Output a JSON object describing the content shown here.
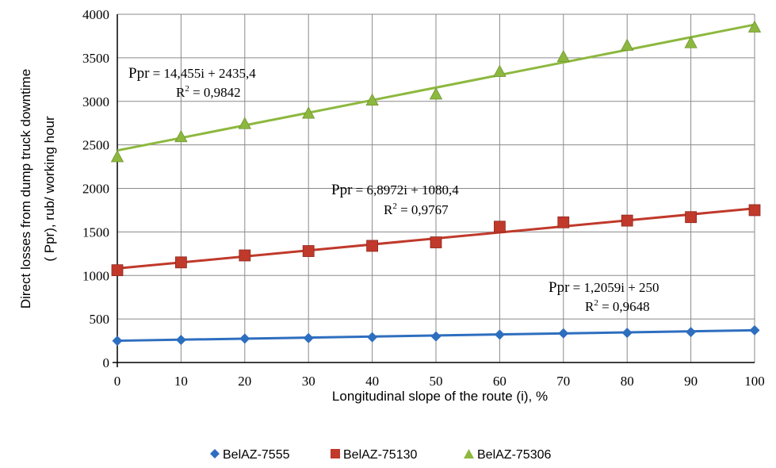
{
  "chart_data": {
    "type": "scatter",
    "xlabel": "Longitudinal slope of the route (i), %",
    "ylabel_line1": "Direct losses from dump truck downtime",
    "ylabel_line2": "( Ppr), rub/ working hour",
    "xlim": [
      0,
      100
    ],
    "ylim": [
      0,
      4000
    ],
    "xticks": [
      0,
      10,
      20,
      30,
      40,
      50,
      60,
      70,
      80,
      90,
      100
    ],
    "yticks": [
      0,
      500,
      1000,
      1500,
      2000,
      2500,
      3000,
      3500,
      4000
    ],
    "grid": "vertical and horizontal",
    "legend_position": "bottom",
    "x": [
      0,
      10,
      20,
      30,
      40,
      50,
      60,
      70,
      80,
      90,
      100
    ],
    "series": [
      {
        "name": "BelAZ-7555",
        "marker": "diamond",
        "color": "#2e6ebf",
        "values": [
          250,
          260,
          275,
          280,
          290,
          300,
          320,
          335,
          340,
          350,
          370
        ],
        "trend": {
          "slope": 1.2059,
          "intercept": 250
        },
        "equation_label": "Ppr",
        "equation_rest": " = 1,2059i + 250",
        "r2_prefix": "R",
        "r2_sup": "2",
        "r2_rest": " = 0,9648"
      },
      {
        "name": "BelAZ-75130",
        "marker": "square",
        "color": "#c0392b",
        "values": [
          1060,
          1150,
          1230,
          1280,
          1340,
          1380,
          1560,
          1610,
          1630,
          1670,
          1750
        ],
        "trend": {
          "slope": 6.8972,
          "intercept": 1080.4
        },
        "equation_label": "Ppr",
        "equation_rest": " = 6,8972i + 1080,4",
        "r2_prefix": "R",
        "r2_sup": "2",
        "r2_rest": " = 0,9767"
      },
      {
        "name": "BelAZ-75306",
        "marker": "triangle",
        "color": "#8db83f",
        "values": [
          2360,
          2590,
          2740,
          2860,
          3010,
          3080,
          3340,
          3510,
          3640,
          3670,
          3850
        ],
        "trend": {
          "slope": 14.455,
          "intercept": 2435.4
        },
        "equation_label": "Ppr",
        "equation_rest": " = 14,455i + 2435,4",
        "r2_prefix": "R",
        "r2_sup": "2",
        "r2_rest": " = 0,9842"
      }
    ]
  }
}
